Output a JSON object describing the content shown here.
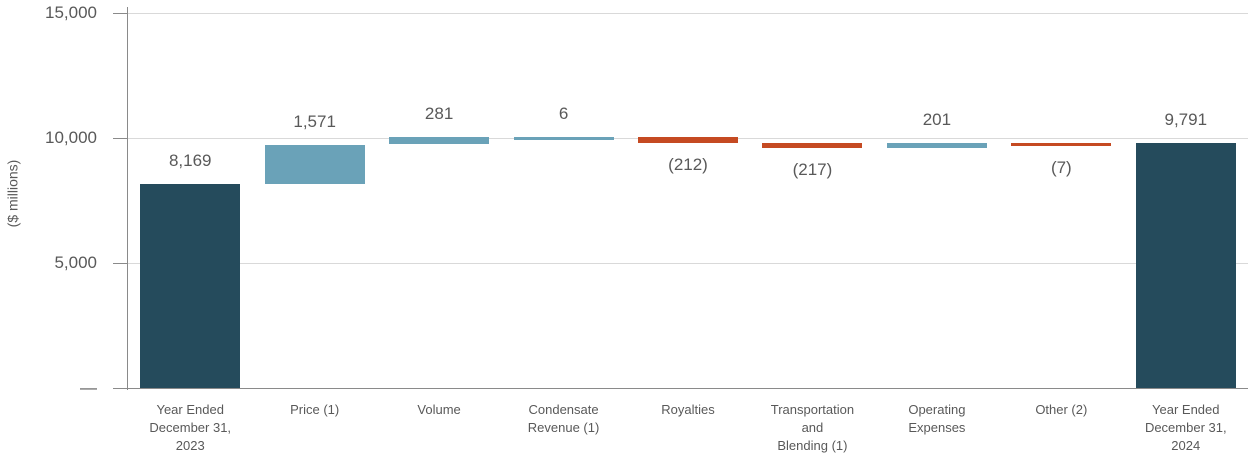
{
  "chart_data": {
    "type": "waterfall",
    "title": "",
    "ylabel": "($ millions)",
    "grid": true,
    "legend": "none",
    "y_axis": {
      "min": 0,
      "max": 15000,
      "ticks": [
        {
          "value": 15000,
          "label": "15,000"
        },
        {
          "value": 10000,
          "label": "10,000"
        },
        {
          "value": 5000,
          "label": "5,000"
        },
        {
          "value": 0,
          "label": "—"
        }
      ]
    },
    "colors": {
      "total": "#254b5c",
      "increase": "#6aa2b8",
      "decrease": "#c54a22"
    },
    "columns": [
      {
        "category_lines": [
          "Year Ended",
          "December 31,",
          "2023"
        ],
        "label": "8,169",
        "value": 8169,
        "start": 0,
        "end": 8169,
        "type": "total"
      },
      {
        "category_lines": [
          "Price (1)"
        ],
        "label": "1,571",
        "value": 1571,
        "start": 8169,
        "end": 9740,
        "type": "increase"
      },
      {
        "category_lines": [
          "Volume"
        ],
        "label": "281",
        "value": 281,
        "start": 9740,
        "end": 10021,
        "type": "increase"
      },
      {
        "category_lines": [
          "Condensate",
          "Revenue (1)"
        ],
        "label": "6",
        "value": 6,
        "start": 10021,
        "end": 10027,
        "type": "increase"
      },
      {
        "category_lines": [
          "Royalties"
        ],
        "label": "(212)",
        "value": -212,
        "start": 10027,
        "end": 9815,
        "type": "decrease"
      },
      {
        "category_lines": [
          "Transportation",
          "and",
          "Blending (1)"
        ],
        "label": "(217)",
        "value": -217,
        "start": 9815,
        "end": 9598,
        "type": "decrease"
      },
      {
        "category_lines": [
          "Operating",
          "Expenses"
        ],
        "label": "201",
        "value": 201,
        "start": 9598,
        "end": 9799,
        "type": "increase"
      },
      {
        "category_lines": [
          "Other (2)"
        ],
        "label": "(7)",
        "value": -7,
        "start": 9799,
        "end": 9792,
        "type": "decrease"
      },
      {
        "category_lines": [
          "Year Ended",
          "December 31,",
          "2024"
        ],
        "label": "9,791",
        "value": 9791,
        "start": 0,
        "end": 9791,
        "type": "total"
      }
    ]
  }
}
